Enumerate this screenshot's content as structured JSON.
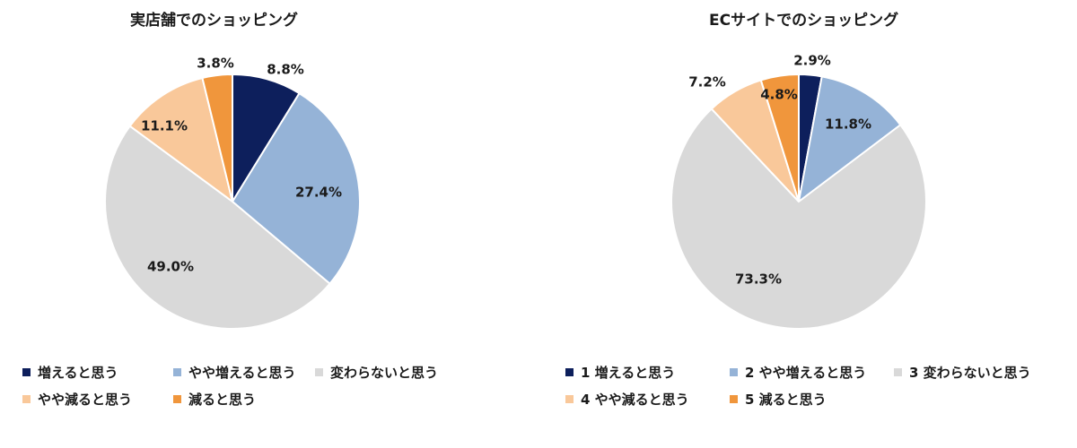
{
  "chart_data": [
    {
      "type": "pie",
      "title": "実店舗でのショッピング",
      "series": [
        {
          "name": "増えると思う",
          "value": 8.8,
          "label": "8.8%",
          "color": "#0d1f5c"
        },
        {
          "name": "やや増えると思う",
          "value": 27.4,
          "label": "27.4%",
          "color": "#95b3d7"
        },
        {
          "name": "変わらないと思う",
          "value": 49.0,
          "label": "49.0%",
          "color": "#d9d9d9"
        },
        {
          "name": "やや減ると思う",
          "value": 11.1,
          "label": "11.1%",
          "color": "#f9c89a"
        },
        {
          "name": "減ると思う",
          "value": 3.8,
          "label": "3.8%",
          "color": "#f0963c"
        }
      ],
      "legend_placement": "bottom"
    },
    {
      "type": "pie",
      "title": "ECサイトでのショッピング",
      "series": [
        {
          "name": "1 増えると思う",
          "value": 2.9,
          "label": "2.9%",
          "color": "#0d1f5c"
        },
        {
          "name": "2 やや増えると思う",
          "value": 11.8,
          "label": "11.8%",
          "color": "#95b3d7"
        },
        {
          "name": "3 変わらないと思う",
          "value": 73.3,
          "label": "73.3%",
          "color": "#d9d9d9"
        },
        {
          "name": "4 やや減ると思う",
          "value": 7.2,
          "label": "7.2%",
          "color": "#f9c89a"
        },
        {
          "name": "5 減ると思う",
          "value": 4.8,
          "label": "4.8%",
          "color": "#f0963c"
        }
      ],
      "legend_placement": "bottom"
    }
  ]
}
